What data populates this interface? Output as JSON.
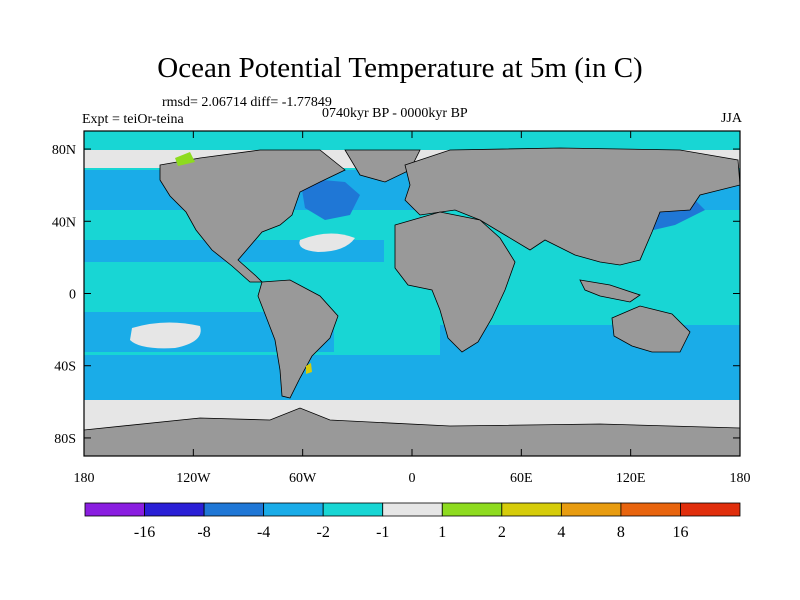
{
  "title": "Ocean Potential Temperature at 5m (in C)",
  "stats": "rmsd= 2.06714 diff= -1.77849",
  "experiment": "Expt = teiOr-teina",
  "period": "0740kyr BP - 0000kyr BP",
  "season": "JJA",
  "colors": {
    "land": "#999999",
    "ocean_main": "#18d6d4",
    "ocean_mid": "#1aace8",
    "ocean_deep": "#1f77d6",
    "neutral": "#e6e6e6",
    "coast": "#000000"
  },
  "chart_data": {
    "type": "heatmap",
    "x_ticks": [
      "180",
      "120W",
      "60W",
      "0",
      "60E",
      "120E",
      "180"
    ],
    "y_ticks": [
      "80N",
      "40N",
      "0",
      "40S",
      "80S"
    ],
    "colorbar": {
      "labels": [
        "-16",
        "-8",
        "-4",
        "-2",
        "-1",
        "1",
        "2",
        "4",
        "8",
        "16"
      ],
      "colors": [
        "#8a1ee0",
        "#2a1fd6",
        "#1f77d6",
        "#1aace8",
        "#18d6d4",
        "#e6e6e6",
        "#8edb1f",
        "#d6cc0a",
        "#e89c10",
        "#e8640e",
        "#e02e0c"
      ]
    }
  }
}
